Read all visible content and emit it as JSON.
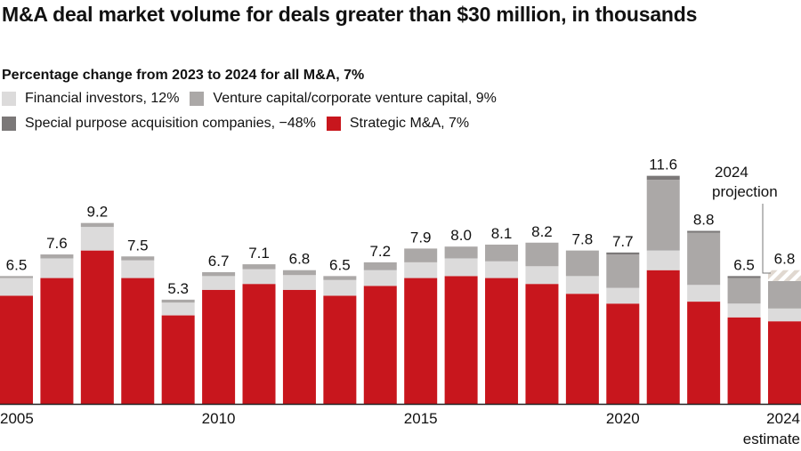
{
  "chart_data": {
    "type": "bar",
    "stacked": true,
    "title": "M&A deal market volume for deals greater than $30 million, in thousands",
    "subtitle": "Percentage change from 2023 to 2024 for all M&A, 7%",
    "categories": [
      "2005",
      "2006",
      "2007",
      "2008",
      "2009",
      "2010",
      "2011",
      "2012",
      "2013",
      "2014",
      "2015",
      "2016",
      "2017",
      "2018",
      "2019",
      "2020",
      "2021",
      "2022",
      "2023",
      "2024"
    ],
    "x_tick_labels": [
      "2005",
      "2010",
      "2015",
      "2020",
      "2024"
    ],
    "x_tick_sublabel": "estimate",
    "totals": [
      6.5,
      7.6,
      9.2,
      7.5,
      5.3,
      6.7,
      7.1,
      6.8,
      6.5,
      7.2,
      7.9,
      8.0,
      8.1,
      8.2,
      7.8,
      7.7,
      11.6,
      8.8,
      6.5,
      6.8
    ],
    "total_labels": [
      "6.5",
      "7.6",
      "9.2",
      "7.5",
      "5.3",
      "6.7",
      "7.1",
      "6.8",
      "6.5",
      "7.2",
      "7.9",
      "8.0",
      "8.1",
      "8.2",
      "7.8",
      "7.7",
      "11.6",
      "8.8",
      "6.5",
      "6.8"
    ],
    "series": [
      {
        "name": "Strategic M&A, 7%",
        "color": "#c8161d",
        "values": [
          5.5,
          6.4,
          7.8,
          6.4,
          4.5,
          5.8,
          6.1,
          5.8,
          5.5,
          6.0,
          6.4,
          6.5,
          6.4,
          6.1,
          5.6,
          5.1,
          6.8,
          5.2,
          4.4,
          4.2
        ]
      },
      {
        "name": "Financial investors, 12%",
        "color": "#dcdbdb",
        "values": [
          0.9,
          1.0,
          1.2,
          0.9,
          0.65,
          0.7,
          0.75,
          0.75,
          0.8,
          0.8,
          0.8,
          0.9,
          0.85,
          0.9,
          0.9,
          0.8,
          1.0,
          0.85,
          0.7,
          0.65
        ]
      },
      {
        "name": "Venture capital/corporate venture capital, 9%",
        "color": "#aba8a7",
        "values": [
          0.1,
          0.2,
          0.2,
          0.2,
          0.15,
          0.2,
          0.25,
          0.25,
          0.2,
          0.4,
          0.7,
          0.6,
          0.85,
          1.2,
          1.3,
          1.7,
          3.6,
          2.65,
          1.3,
          1.4
        ]
      },
      {
        "name": "Special purpose acquisition companies, −48%",
        "color": "#7b7878",
        "values": [
          0,
          0,
          0,
          0,
          0,
          0,
          0,
          0,
          0,
          0,
          0,
          0,
          0,
          0,
          0,
          0.1,
          0.2,
          0.1,
          0.1,
          0
        ]
      }
    ],
    "projection": {
      "label_line1": "2024",
      "label_line2": "projection",
      "category": "2024",
      "value": 0.55,
      "style": "hatched"
    },
    "ylim": [
      0,
      11.8
    ],
    "grid": false,
    "legend_position": "top"
  }
}
